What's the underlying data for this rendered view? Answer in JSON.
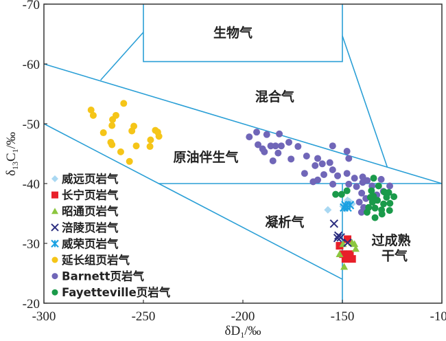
{
  "chart_data": {
    "type": "scatter",
    "xlabel": {
      "base": "δD",
      "sub": "1",
      "unit": "/‰"
    },
    "ylabel": {
      "base": "δ",
      "sub1": "13",
      "mid": "C",
      "sub2": "1",
      "unit": "/‰"
    },
    "xlim": [
      -300,
      -100
    ],
    "ylim": [
      -70,
      -20
    ],
    "y_inverted": true,
    "x_ticks": [
      "-300",
      "-250",
      "-200",
      "-150",
      "-100"
    ],
    "y_ticks": [
      "-70",
      "-60",
      "-50",
      "-40",
      "-30",
      "-20"
    ],
    "grid": false,
    "legend_position": "bottom-left",
    "line_color": "#2a9fd6",
    "boundary_lines": [
      [
        [
          -250,
          -70
        ],
        [
          -250,
          -60.4
        ],
        [
          -150,
          -60.4
        ],
        [
          -150,
          -70
        ]
      ],
      [
        [
          -300,
          -60
        ],
        [
          -100,
          -40
        ]
      ],
      [
        [
          -271.5,
          -57.3
        ],
        [
          -250,
          -65.3
        ]
      ],
      [
        [
          -150,
          -64.7
        ],
        [
          -127.4,
          -42.7
        ]
      ],
      [
        [
          -300,
          -50
        ],
        [
          -150,
          -24
        ]
      ],
      [
        [
          -242.3,
          -40
        ],
        [
          -100,
          -40
        ]
      ],
      [
        [
          -150,
          -40
        ],
        [
          -150,
          -20
        ]
      ]
    ],
    "regions": [
      {
        "label": "生物气",
        "x": -205,
        "y": -65.3
      },
      {
        "label": "混合气",
        "x": -184,
        "y": -54.6
      },
      {
        "label": "原油伴生气",
        "x": -218.6,
        "y": -44.5
      },
      {
        "label": "凝析气",
        "x": -179,
        "y": -33.6
      },
      {
        "label": "过成熟",
        "x": -125.5,
        "y": -30.6
      },
      {
        "label": "干气",
        "x": -123.8,
        "y": -28
      }
    ],
    "series": [
      {
        "name": "威远页岩气",
        "marker": "diamond",
        "color": "#a9d8f2",
        "points": [
          [
            -157.3,
            -35.6
          ],
          [
            -147.4,
            -37.2
          ],
          [
            -149.7,
            -36.2
          ],
          [
            -145.1,
            -36.6
          ],
          [
            -148.5,
            -35.8
          ],
          [
            -146.5,
            -37.0
          ]
        ]
      },
      {
        "name": "长宁页岩气",
        "marker": "square",
        "color": "#e8202a",
        "points": [
          [
            -151.4,
            -29.6
          ],
          [
            -147.4,
            -30.7
          ],
          [
            -149.7,
            -28.2
          ],
          [
            -147.4,
            -28.1
          ],
          [
            -145.1,
            -27.4
          ],
          [
            -146.2,
            -28.2
          ],
          [
            -148.5,
            -27.4
          ]
        ]
      },
      {
        "name": "昭通页岩气",
        "marker": "triangle",
        "color": "#8cc63f",
        "points": [
          [
            -143.9,
            -29.9
          ],
          [
            -149.7,
            -29.9
          ],
          [
            -151.4,
            -28.2
          ],
          [
            -149.1,
            -26.1
          ],
          [
            -143.3,
            -29.1
          ],
          [
            -145.1,
            -30.1
          ]
        ]
      },
      {
        "name": "涪陵页岩气",
        "marker": "x",
        "color": "#2b2d7f",
        "points": [
          [
            -154.2,
            -33.3
          ],
          [
            -152.0,
            -31.3
          ],
          [
            -150.8,
            -31.0
          ],
          [
            -152.4,
            -30.9
          ],
          [
            -147.4,
            -30.1
          ]
        ]
      },
      {
        "name": "威荣页岩气",
        "marker": "asterisk",
        "color": "#1ba1e2",
        "points": [
          [
            -148.5,
            -36.4
          ],
          [
            -147.4,
            -36.0
          ],
          [
            -149.2,
            -36.0
          ],
          [
            -146.2,
            -36.4
          ]
        ]
      },
      {
        "name": "延长组页岩气",
        "marker": "circle",
        "color": "#f5c518",
        "points": [
          [
            -276.3,
            -52.3
          ],
          [
            -275.2,
            -51.4
          ],
          [
            -259.9,
            -53.4
          ],
          [
            -263.8,
            -51.4
          ],
          [
            -265.5,
            -50.7
          ],
          [
            -265.8,
            -49.7
          ],
          [
            -270.1,
            -48.5
          ],
          [
            -254.8,
            -49.6
          ],
          [
            -255.8,
            -48.8
          ],
          [
            -266.4,
            -46.9
          ],
          [
            -265.8,
            -46.5
          ],
          [
            -261.4,
            -45.3
          ],
          [
            -253.6,
            -46.3
          ],
          [
            -257.0,
            -43.7
          ],
          [
            -244.0,
            -48.9
          ],
          [
            -242.8,
            -48.6
          ],
          [
            -242.2,
            -47.9
          ],
          [
            -246.4,
            -47.3
          ],
          [
            -246.7,
            -46.2
          ]
        ]
      },
      {
        "name": "Barnett页岩气",
        "marker": "circle",
        "color": "#7066b8",
        "points": [
          [
            -196.8,
            -47.8
          ],
          [
            -193.1,
            -48.6
          ],
          [
            -188.0,
            -48.2
          ],
          [
            -181.7,
            -48.3
          ],
          [
            -192.4,
            -46.5
          ],
          [
            -190.1,
            -45.8
          ],
          [
            -189.2,
            -45.3
          ],
          [
            -186.0,
            -46.3
          ],
          [
            -183.6,
            -46.3
          ],
          [
            -180.7,
            -46.3
          ],
          [
            -176.9,
            -46.9
          ],
          [
            -172.3,
            -46.2
          ],
          [
            -182.3,
            -45.1
          ],
          [
            -184.9,
            -43.8
          ],
          [
            -175.8,
            -44.1
          ],
          [
            -168.0,
            -44.6
          ],
          [
            -162.4,
            -44.2
          ],
          [
            -154.9,
            -46.3
          ],
          [
            -147.7,
            -45.4
          ],
          [
            -146.8,
            -44.2
          ],
          [
            -163.7,
            -43.0
          ],
          [
            -160.1,
            -43.3
          ],
          [
            -156.3,
            -43.5
          ],
          [
            -154.9,
            -42.3
          ],
          [
            -169.0,
            -41.7
          ],
          [
            -159.3,
            -41.5
          ],
          [
            -152.4,
            -41.3
          ],
          [
            -147.7,
            -41.7
          ],
          [
            -143.9,
            -40.9
          ],
          [
            -139.8,
            -41.1
          ],
          [
            -137.5,
            -40.5
          ],
          [
            -164.7,
            -40.3
          ],
          [
            -162.4,
            -40.6
          ],
          [
            -154.8,
            -39.9
          ],
          [
            -146.8,
            -39.9
          ],
          [
            -142.9,
            -39.5
          ],
          [
            -139.8,
            -40.2
          ],
          [
            -135.1,
            -39.6
          ],
          [
            -130.5,
            -40.7
          ],
          [
            -126.2,
            -39.6
          ],
          [
            -129.4,
            -38.7
          ],
          [
            -140.3,
            -38.4
          ],
          [
            -138.2,
            -37.5
          ],
          [
            -132.7,
            -38.1
          ],
          [
            -141.5,
            -36.9
          ],
          [
            -139.3,
            -36.0
          ],
          [
            -140.4,
            -35.2
          ],
          [
            -138.9,
            -35.6
          ]
        ]
      },
      {
        "name": "Fayetteville页岩气",
        "marker": "circle",
        "color": "#1a9a4a",
        "points": [
          [
            -134.3,
            -40.9
          ],
          [
            -153.4,
            -38.2
          ],
          [
            -147.7,
            -38.8
          ],
          [
            -150.4,
            -38.2
          ],
          [
            -135.4,
            -38.8
          ],
          [
            -131.8,
            -39.6
          ],
          [
            -134.4,
            -37.9
          ],
          [
            -129.0,
            -38.6
          ],
          [
            -126.7,
            -38.5
          ],
          [
            -124.1,
            -37.8
          ],
          [
            -135.9,
            -37.7
          ],
          [
            -132.4,
            -37.2
          ],
          [
            -129.3,
            -36.6
          ],
          [
            -126.1,
            -36.7
          ],
          [
            -134.9,
            -36.9
          ],
          [
            -136.8,
            -36.0
          ],
          [
            -133.6,
            -35.9
          ],
          [
            -130.3,
            -35.6
          ],
          [
            -126.3,
            -35.5
          ],
          [
            -137.6,
            -35.2
          ],
          [
            -133.6,
            -34.3
          ],
          [
            -130.1,
            -34.9
          ],
          [
            -127.8,
            -37.7
          ]
        ]
      }
    ]
  }
}
